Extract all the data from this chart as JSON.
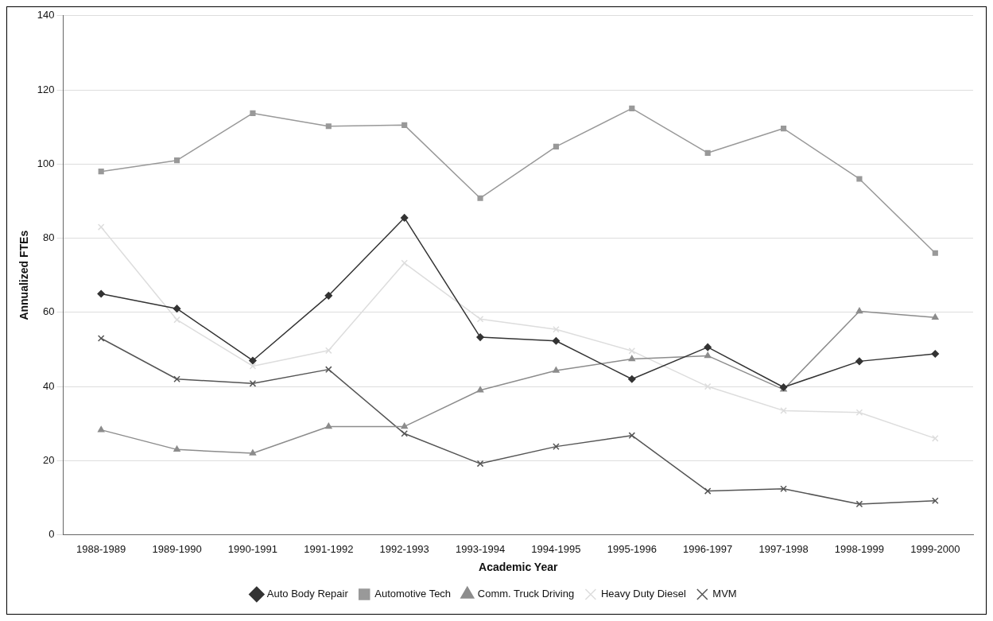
{
  "chart_data": {
    "type": "line",
    "xlabel": "Academic Year",
    "ylabel": "Annualized FTEs",
    "categories": [
      "1988-1989",
      "1989-1990",
      "1990-1991",
      "1991-1992",
      "1992-1993",
      "1993-1994",
      "1994-1995",
      "1995-1996",
      "1996-1997",
      "1997-1998",
      "1998-1999",
      "1999-2000"
    ],
    "series": [
      {
        "name": "Auto Body Repair",
        "color": "#333333",
        "marker": "diamond",
        "values": [
          65,
          61,
          47,
          64.5,
          85.5,
          53.3,
          52.3,
          42,
          50.6,
          39.8,
          46.8,
          48.8
        ]
      },
      {
        "name": "Automotive Tech",
        "color": "#999999",
        "marker": "square",
        "values": [
          98,
          101,
          113.7,
          110.2,
          110.5,
          90.8,
          104.7,
          115,
          103,
          109.6,
          96,
          76
        ]
      },
      {
        "name": "Comm. Truck Driving",
        "color": "#8c8c8c",
        "marker": "triangle",
        "values": [
          28.3,
          23,
          22,
          29.2,
          29.2,
          39,
          44.3,
          47.4,
          48.3,
          39.2,
          60.3,
          58.6
        ]
      },
      {
        "name": "Heavy Duty Diesel",
        "color": "#dddddd",
        "marker": "cross",
        "values": [
          83,
          58,
          45.5,
          49.7,
          73.3,
          58.2,
          55.4,
          49.6,
          40,
          33.5,
          33,
          26
        ]
      },
      {
        "name": "MVM",
        "color": "#555555",
        "marker": "cross",
        "values": [
          53,
          42,
          40.8,
          44.6,
          27.3,
          19.2,
          23.8,
          26.8,
          11.8,
          12.4,
          8.3,
          9.2
        ]
      }
    ],
    "ylim": [
      0,
      140
    ],
    "yticks": [
      0,
      20,
      40,
      60,
      80,
      100,
      120,
      140
    ],
    "grid": "y",
    "legend": "bottom",
    "line_style": "solid"
  }
}
